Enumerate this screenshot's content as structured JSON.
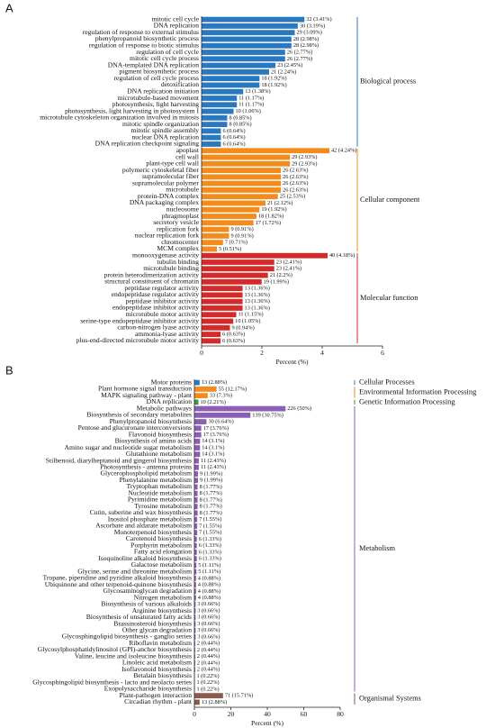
{
  "chart_data": [
    {
      "type": "bar",
      "panel": "A",
      "xlabel": "Percent (%)",
      "xlim": [
        0,
        6
      ],
      "xticks": [
        0,
        2,
        4,
        6
      ],
      "groups": [
        {
          "name": "Biological process",
          "color": "#2a78c0",
          "categories": [
            "mitotic cell cycle",
            "DNA replication",
            "regulation of response to external stimulus",
            "phenylpropanoid biosynthetic process",
            "regulation of response to biotic stimulus",
            "regulation of cell cycle",
            "mitotic cell cycle process",
            "DNA-templated DNA replication",
            "pigment biosynthetic process",
            "regulation of cell cycle process",
            "detoxification",
            "DNA replication initiation",
            "microtubule-based movement",
            "photosynthesis, light harvesting",
            "photosynthesis, light harvesting in photosystem I",
            "microtubule cytoskeleton organization involved in mitosis",
            "mitotic spindle organization",
            "mitotic spindle assembly",
            "nuclear DNA replication",
            "DNA replication checkpoint signaling"
          ],
          "values": [
            3.41,
            3.19,
            3.09,
            2.98,
            2.98,
            2.77,
            2.77,
            2.45,
            2.24,
            1.92,
            1.92,
            1.38,
            1.17,
            1.17,
            1.06,
            0.85,
            0.85,
            0.64,
            0.64,
            0.64
          ],
          "value_labels": [
            "32 (3.41%)",
            "30 (3.19%)",
            "29 (3.09%)",
            "28 (2.98%)",
            "28 (2.98%)",
            "26 (2.77%)",
            "26 (2.77%)",
            "23 (2.45%)",
            "21 (2.24%)",
            "18 (1.92%)",
            "18 (1.92%)",
            "13 (1.38%)",
            "11 (1.17%)",
            "11 (1.17%)",
            "10 (1.06%)",
            "8 (0.85%)",
            "8 (0.85%)",
            "6 (0.64%)",
            "6 (0.64%)",
            "6 (0.64%)"
          ]
        },
        {
          "name": "Cellular component",
          "color": "#f28c1c",
          "categories": [
            "apoplast",
            "cell wall",
            "plant-type cell wall",
            "polymeric cytoskeletal fiber",
            "supramolecular fiber",
            "supramolecular polymer",
            "microtubule",
            "protein-DNA complex",
            "DNA packaging complex",
            "nucleosome",
            "phragmoplast",
            "secretory vesicle",
            "replication fork",
            "nuclear replication fork",
            "chromocenter",
            "MCM complex"
          ],
          "values": [
            4.24,
            2.93,
            2.93,
            2.63,
            2.63,
            2.63,
            2.63,
            2.53,
            2.12,
            1.92,
            1.82,
            1.72,
            0.91,
            0.91,
            0.71,
            0.51
          ],
          "value_labels": [
            "42 (4.24%)",
            "29 (2.93%)",
            "29 (2.93%)",
            "26 (2.63%)",
            "26 (2.63%)",
            "26 (2.63%)",
            "26 (2.63%)",
            "25 (2.53%)",
            "21 (2.12%)",
            "19 (1.92%)",
            "18 (1.82%)",
            "17 (1.72%)",
            "9 (0.91%)",
            "9 (0.91%)",
            "7 (0.71%)",
            "5 (0.51%)"
          ]
        },
        {
          "name": "Molecular function",
          "color": "#d42a2a",
          "categories": [
            "monooxygenase activity",
            "tubulin binding",
            "microtubule binding",
            "protein heterodimerization activity",
            "structural constituent of chromatin",
            "peptidase regulator activity",
            "endopeptidase regulator activity",
            "peptidase inhibitor activity",
            "endopeptidase inhibitor activity",
            "microtubule motor activity",
            "serine-type endopeptidase inhibitor activity",
            "carbon-nitrogen lyase activity",
            "ammonia-lyase activity",
            "plus-end-directed microtubule motor activity"
          ],
          "values": [
            4.18,
            2.41,
            2.41,
            2.2,
            1.99,
            1.36,
            1.36,
            1.36,
            1.36,
            1.15,
            1.05,
            0.94,
            0.63,
            0.63
          ],
          "value_labels": [
            "40 (4.18%)",
            "23 (2.41%)",
            "23 (2.41%)",
            "21 (2.2%)",
            "19 (1.99%)",
            "13 (1.36%)",
            "13 (1.36%)",
            "13 (1.36%)",
            "13 (1.36%)",
            "11 (1.15%)",
            "10 (1.05%)",
            "9 (0.94%)",
            "6 (0.63%)",
            "6 (0.63%)"
          ]
        }
      ]
    },
    {
      "type": "bar",
      "panel": "B",
      "xlabel": "Percent (%)",
      "xlim": [
        0,
        80
      ],
      "xticks": [
        0,
        20,
        40,
        60,
        80
      ],
      "groups": [
        {
          "name": "Cellular Processes",
          "color": "#2a78c0",
          "categories": [
            "Motor proteins"
          ],
          "values": [
            2.88
          ],
          "value_labels": [
            "13 (2.88%)"
          ]
        },
        {
          "name": "Environmental Information Processing",
          "color": "#f28c1c",
          "categories": [
            "Plant hormone signal transduction",
            "MAPK signaling pathway - plant"
          ],
          "values": [
            12.17,
            7.3
          ],
          "value_labels": [
            "55 (12.17%)",
            "33 (7.3%)"
          ]
        },
        {
          "name": "Genetic Information Processing",
          "color": "#3a9a3a",
          "categories": [
            "DNA replication"
          ],
          "values": [
            2.21
          ],
          "value_labels": [
            "10 (2.21%)"
          ]
        },
        {
          "name": "Metabolism",
          "color": "#8b5fb4",
          "categories": [
            "Metabolic pathways",
            "Biosynthesis of secondary metabolites",
            "Phenylpropanoid biosynthesis",
            "Pentose and glucuronate interconversions",
            "Flavonoid biosynthesis",
            "Biosynthesis of amino acids",
            "Amino sugar and nucleotide sugar metabolism",
            "Glutathione metabolism",
            "Stilbenoid, diarylheptanoid and gingerol biosynthesis",
            "Photosynthesis - antenna proteins",
            "Glycerophospholipid metabolism",
            "Phenylalanine metabolism",
            "Tryptophan metabolism",
            "Nucleotide metabolism",
            "Pyrimidine metabolism",
            "Tyrosine metabolism",
            "Cutin, suberine and wax biosynthesis",
            "Inositol phosphate metabolism",
            "Ascorbate and aldarate metabolism",
            "Monoterpenoid biosynthesis",
            "Carotenoid biosynthesis",
            "Porphyrin metabolism",
            "Fatty acid elongation",
            "Isoquinoline alkaloid biosynthesis",
            "Galactose metabolism",
            "Glycine, serine and threonine metabolism",
            "Tropane, piperidine and pyridine alkaloid biosynthesis",
            "Ubiquinone and other terpenoid-quinone biosynthesis",
            "Glycosaminoglycan degradation",
            "Nitrogen metabolism",
            "Biosynthesis of various alkaloids",
            "Arginine biosynthesis",
            "Biosynthesis of unsaturated fatty acids",
            "Brassinosteroid biosynthesis",
            "Other glycan degradation",
            "Glycosphingolipid biosynthesis - ganglio series",
            "Riboflavin metabolism",
            "Glycosylphosphatidylinositol (GPI)-anchor biosynthesis",
            "Valine, leucine and isoleucine biosynthesis",
            "Linoleic acid metabolism",
            "Isoflavonoid biosynthesis",
            "Betalain biosynthesis",
            "Glycosphingolipid biosynthesis - lacto and neolacto series",
            "Exopolysaccharide biosynthesis"
          ],
          "values": [
            50,
            30.75,
            6.64,
            3.76,
            3.76,
            3.1,
            3.1,
            3.1,
            2.43,
            2.43,
            1.99,
            1.99,
            1.77,
            1.77,
            1.77,
            1.77,
            1.77,
            1.55,
            1.55,
            1.55,
            1.33,
            1.33,
            1.33,
            1.33,
            1.11,
            1.11,
            0.88,
            0.88,
            0.88,
            0.88,
            0.66,
            0.66,
            0.66,
            0.66,
            0.66,
            0.66,
            0.44,
            0.44,
            0.44,
            0.44,
            0.44,
            0.22,
            0.22,
            0.22
          ],
          "value_labels": [
            "226 (50%)",
            "139 (30.75%)",
            "30 (6.64%)",
            "17 (3.76%)",
            "17 (3.76%)",
            "14 (3.1%)",
            "14 (3.1%)",
            "14 (3.1%)",
            "11 (2.43%)",
            "11 (2.43%)",
            "9 (1.99%)",
            "9 (1.99%)",
            "8 (1.77%)",
            "8 (1.77%)",
            "8 (1.77%)",
            "8 (1.77%)",
            "8 (1.77%)",
            "7 (1.55%)",
            "7 (1.55%)",
            "7 (1.55%)",
            "6 (1.33%)",
            "6 (1.33%)",
            "6 (1.33%)",
            "6 (1.33%)",
            "5 (1.11%)",
            "5 (1.11%)",
            "4 (0.88%)",
            "4 (0.88%)",
            "4 (0.88%)",
            "4 (0.88%)",
            "3 (0.66%)",
            "3 (0.66%)",
            "3 (0.66%)",
            "3 (0.66%)",
            "3 (0.66%)",
            "3 (0.66%)",
            "2 (0.44%)",
            "2 (0.44%)",
            "2 (0.44%)",
            "2 (0.44%)",
            "2 (0.44%)",
            "1 (0.22%)",
            "1 (0.22%)",
            "1 (0.22%)"
          ]
        },
        {
          "name": "Organismal Systems",
          "color": "#8b5a4a",
          "categories": [
            "Plant-pathogen interaction",
            "Circadian rhythm - plant"
          ],
          "values": [
            15.71,
            2.88
          ],
          "value_labels": [
            "71 (15.71%)",
            "13 (2.88%)"
          ]
        }
      ]
    }
  ]
}
